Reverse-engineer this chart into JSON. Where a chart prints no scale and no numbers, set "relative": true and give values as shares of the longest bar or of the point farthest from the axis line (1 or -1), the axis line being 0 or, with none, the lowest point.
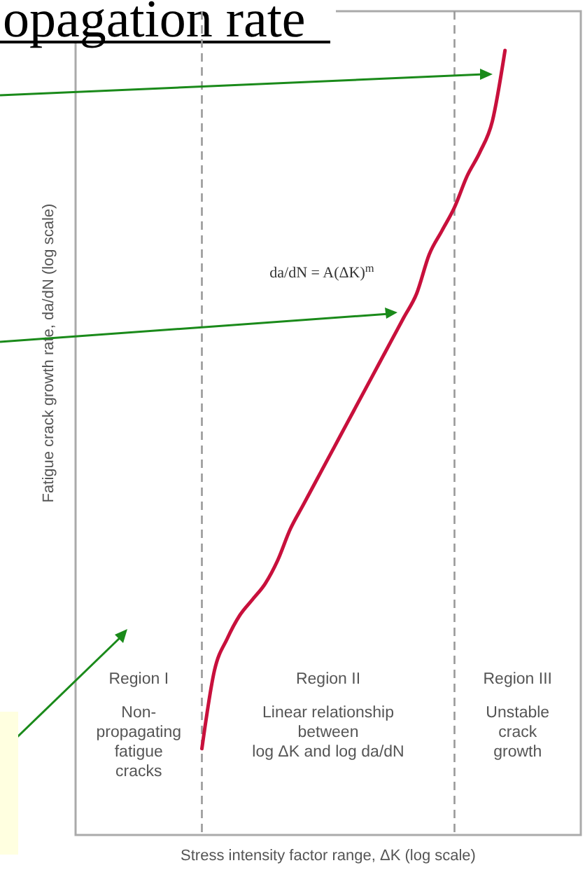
{
  "chart_data": {
    "type": "line",
    "title": "opagation rate",
    "xlabel": "Stress intensity factor range, ΔK (log scale)",
    "ylabel": "Fatigue crack growth rate, da/dN (log scale)",
    "relative": true,
    "categories": [
      null,
      null,
      null,
      null,
      null,
      null,
      null,
      null,
      null,
      null,
      null,
      null,
      null,
      null,
      null,
      null,
      null,
      null,
      null,
      null,
      null,
      null,
      null,
      null,
      null,
      null,
      null,
      null,
      null,
      null,
      null,
      null,
      null,
      null,
      null,
      null,
      null,
      null,
      null,
      null,
      null
    ],
    "series": [
      {
        "color": "#c8103c",
        "values": [
          null,
          null,
          null,
          null,
          null,
          null,
          null,
          null,
          null,
          null,
          0.11,
          0.21,
          0.25,
          0.28,
          0.3,
          0.32,
          0.35,
          0.39,
          0.42,
          0.45,
          0.48,
          0.51,
          0.54,
          0.57,
          0.6,
          0.63,
          0.66,
          0.69,
          0.74,
          0.77,
          0.8,
          0.84,
          0.87,
          0.91,
          1,
          null,
          null,
          null,
          null,
          null,
          null
        ]
      }
    ],
    "annotations": [
      "da/dN = A(ΔK)$^{m}$",
      "Region I\nNon-\npropagating\nfatigue\ncracks",
      "Region II\nLinear relationship\nbetween\nlog ΔK and log da/dN",
      "Region III\nUnstable\ncrack\ngrowth"
    ],
    "marker": "none",
    "line_style": "solid"
  }
}
